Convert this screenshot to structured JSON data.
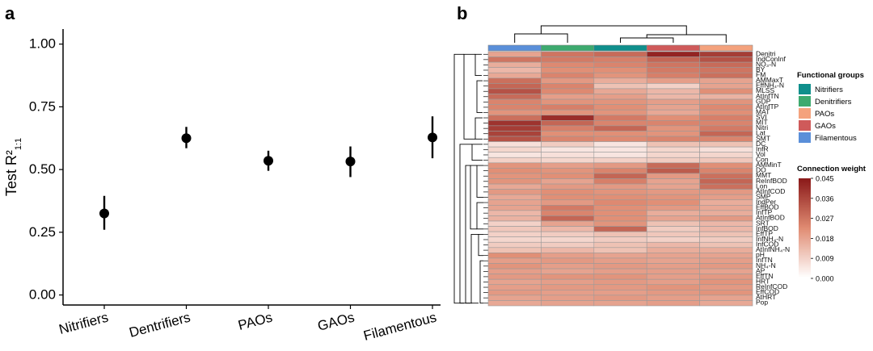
{
  "panels": {
    "a": "a",
    "b": "b"
  },
  "chart_data": [
    {
      "type": "scatter",
      "subtype": "point-with-errorbar",
      "panel": "a",
      "categories": [
        "Nitrifiers",
        "Dentrifiers",
        "PAOs",
        "GAOs",
        "Filamentous"
      ],
      "values": [
        0.325,
        0.625,
        0.535,
        0.532,
        0.628
      ],
      "lower": [
        0.26,
        0.585,
        0.495,
        0.47,
        0.545
      ],
      "upper": [
        0.395,
        0.67,
        0.575,
        0.592,
        0.712
      ],
      "ylabel_main": "Test R²",
      "ylabel_sub": "1:1",
      "xlabel": "",
      "ylim": [
        -0.04,
        1.06
      ],
      "yticks": [
        0.0,
        0.25,
        0.5,
        0.75,
        1.0
      ],
      "ytick_labels": [
        "0.00",
        "0.25",
        "0.50",
        "0.75",
        "1.00"
      ]
    },
    {
      "type": "heatmap",
      "panel": "b",
      "rows": [
        "Denitri",
        "IndConInf",
        "NO₃-N",
        "BY",
        "FM",
        "AMMaxT",
        "EffNH₄-N",
        "MLSS",
        "AtInfTN",
        "GDP",
        "AtInfTP",
        "MAT",
        "SVI",
        "MIT",
        "Nitri",
        "Lat",
        "SMT",
        "DC",
        "InfR",
        "Vol",
        "Con",
        "AMMinT",
        "DO",
        "MMT",
        "ReInfBOD",
        "Lon",
        "AtInfCOD",
        "SMP",
        "IndPer",
        "EffBOD",
        "InfTP",
        "AtInfBOD",
        "SRT",
        "InfBOD",
        "EffTP",
        "InfNH₄-N",
        "InfCOD",
        "AtInfNH₄-N",
        "pH",
        "InfTN",
        "NH₄-N",
        "AP",
        "EffTN",
        "HRT",
        "ReInfCOD",
        "EffCOD",
        "AtHRT",
        "Pop"
      ],
      "columns": [
        "Filamentous",
        "Denitrifiers",
        "Nitrifiers",
        "GAOs",
        "PAOs"
      ],
      "matrix": [
        [
          0.018,
          0.027,
          0.029,
          0.043,
          0.038
        ],
        [
          0.027,
          0.026,
          0.025,
          0.03,
          0.034
        ],
        [
          0.016,
          0.023,
          0.024,
          0.027,
          0.029
        ],
        [
          0.014,
          0.022,
          0.022,
          0.026,
          0.027
        ],
        [
          0.017,
          0.024,
          0.021,
          0.025,
          0.028
        ],
        [
          0.028,
          0.02,
          0.016,
          0.019,
          0.018
        ],
        [
          0.03,
          0.024,
          0.012,
          0.009,
          0.018
        ],
        [
          0.034,
          0.023,
          0.017,
          0.014,
          0.022
        ],
        [
          0.029,
          0.019,
          0.019,
          0.014,
          0.015
        ],
        [
          0.024,
          0.021,
          0.021,
          0.019,
          0.021
        ],
        [
          0.024,
          0.025,
          0.022,
          0.018,
          0.023
        ],
        [
          0.021,
          0.021,
          0.021,
          0.017,
          0.022
        ],
        [
          0.028,
          0.041,
          0.026,
          0.022,
          0.025
        ],
        [
          0.04,
          0.03,
          0.024,
          0.024,
          0.024
        ],
        [
          0.038,
          0.025,
          0.03,
          0.021,
          0.026
        ],
        [
          0.037,
          0.022,
          0.022,
          0.021,
          0.03
        ],
        [
          0.034,
          0.024,
          0.023,
          0.024,
          0.024
        ],
        [
          0.006,
          0.01,
          0.005,
          0.012,
          0.012
        ],
        [
          0.008,
          0.005,
          0.005,
          0.008,
          0.006
        ],
        [
          0.005,
          0.006,
          0.005,
          0.008,
          0.008
        ],
        [
          0.009,
          0.008,
          0.009,
          0.01,
          0.011
        ],
        [
          0.021,
          0.019,
          0.02,
          0.029,
          0.022
        ],
        [
          0.022,
          0.021,
          0.024,
          0.032,
          0.024
        ],
        [
          0.021,
          0.022,
          0.03,
          0.02,
          0.028
        ],
        [
          0.021,
          0.018,
          0.025,
          0.018,
          0.03
        ],
        [
          0.017,
          0.02,
          0.02,
          0.018,
          0.028
        ],
        [
          0.02,
          0.022,
          0.021,
          0.02,
          0.02
        ],
        [
          0.017,
          0.022,
          0.022,
          0.021,
          0.019
        ],
        [
          0.018,
          0.02,
          0.023,
          0.022,
          0.016
        ],
        [
          0.018,
          0.026,
          0.022,
          0.02,
          0.017
        ],
        [
          0.014,
          0.024,
          0.022,
          0.016,
          0.016
        ],
        [
          0.015,
          0.03,
          0.022,
          0.018,
          0.02
        ],
        [
          0.009,
          0.018,
          0.021,
          0.012,
          0.014
        ],
        [
          0.011,
          0.014,
          0.03,
          0.01,
          0.014
        ],
        [
          0.009,
          0.01,
          0.012,
          0.011,
          0.012
        ],
        [
          0.008,
          0.008,
          0.01,
          0.009,
          0.01
        ],
        [
          0.01,
          0.01,
          0.012,
          0.014,
          0.012
        ],
        [
          0.012,
          0.014,
          0.012,
          0.016,
          0.016
        ],
        [
          0.022,
          0.019,
          0.018,
          0.018,
          0.018
        ],
        [
          0.019,
          0.02,
          0.019,
          0.018,
          0.019
        ],
        [
          0.021,
          0.019,
          0.02,
          0.019,
          0.02
        ],
        [
          0.019,
          0.018,
          0.019,
          0.019,
          0.018
        ],
        [
          0.02,
          0.021,
          0.021,
          0.019,
          0.02
        ],
        [
          0.018,
          0.019,
          0.02,
          0.019,
          0.021
        ],
        [
          0.019,
          0.02,
          0.02,
          0.021,
          0.02
        ],
        [
          0.02,
          0.019,
          0.019,
          0.02,
          0.021
        ],
        [
          0.018,
          0.019,
          0.02,
          0.019,
          0.018
        ],
        [
          0.017,
          0.018,
          0.018,
          0.019,
          0.017
        ]
      ],
      "legend_title": "Functional groups",
      "legend": [
        {
          "label": "Nitrifiers",
          "color": "#0f8f8c"
        },
        {
          "label": "Denitrifiers",
          "color": "#3daa6f"
        },
        {
          "label": "PAOs",
          "color": "#f4a27d"
        },
        {
          "label": "GAOs",
          "color": "#cf5a5a"
        },
        {
          "label": "Filamentous",
          "color": "#5a8fd9"
        }
      ],
      "colorbar_title": "Connection weight",
      "colorbar_range": [
        0.0,
        0.045
      ],
      "colorbar_ticks": [
        "0.045",
        "0.036",
        "0.027",
        "0.018",
        "0.009",
        "0.000"
      ],
      "colorbar_colors": {
        "low": "#ffffff",
        "mid": "#e08c73",
        "high": "#8b1a1a"
      }
    }
  ]
}
